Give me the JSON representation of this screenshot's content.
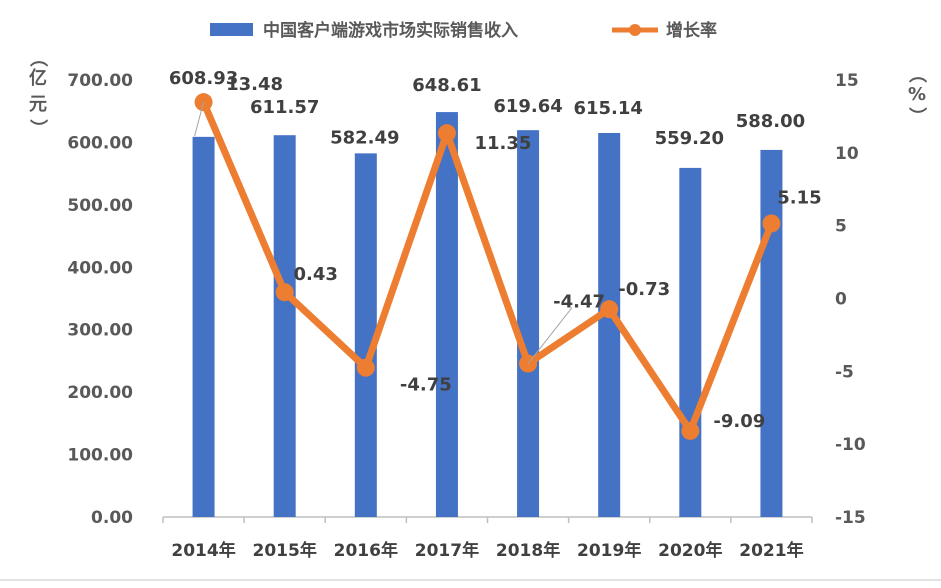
{
  "chart_data": {
    "type": "bar",
    "categories": [
      "2014年",
      "2015年",
      "2016年",
      "2017年",
      "2018年",
      "2019年",
      "2020年",
      "2021年"
    ],
    "series": [
      {
        "name": "中国客户端游戏市场实际销售收入",
        "type": "bar",
        "axis": "left",
        "color": "#4472C4",
        "values": [
          608.93,
          611.57,
          582.49,
          648.61,
          619.64,
          615.14,
          559.2,
          588.0
        ],
        "labels": [
          "608.93",
          "611.57",
          "582.49",
          "648.61",
          "619.64",
          "615.14",
          "559.20",
          "588.00"
        ]
      },
      {
        "name": "增长率",
        "type": "line",
        "axis": "right",
        "color": "#ED7D31",
        "values": [
          13.48,
          0.43,
          -4.75,
          11.35,
          -4.47,
          -0.73,
          -9.09,
          5.15
        ],
        "labels": [
          "13.48",
          "0.43",
          "-4.75",
          "11.35",
          "-4.47",
          "-0.73",
          "-9.09",
          "5.15"
        ]
      }
    ],
    "y_left": {
      "unit_chars": [
        "（",
        "亿",
        "元",
        "）"
      ],
      "range": [
        0,
        700
      ],
      "ticks": [
        "0.00",
        "100.00",
        "200.00",
        "300.00",
        "400.00",
        "500.00",
        "600.00",
        "700.00"
      ]
    },
    "y_right": {
      "unit_chars": [
        "（",
        "%",
        "）"
      ],
      "range": [
        -15,
        15
      ],
      "ticks": [
        "-15",
        "-10",
        "-5",
        "0",
        "5",
        "10",
        "15"
      ]
    },
    "legend_position": "top",
    "grid": false
  }
}
